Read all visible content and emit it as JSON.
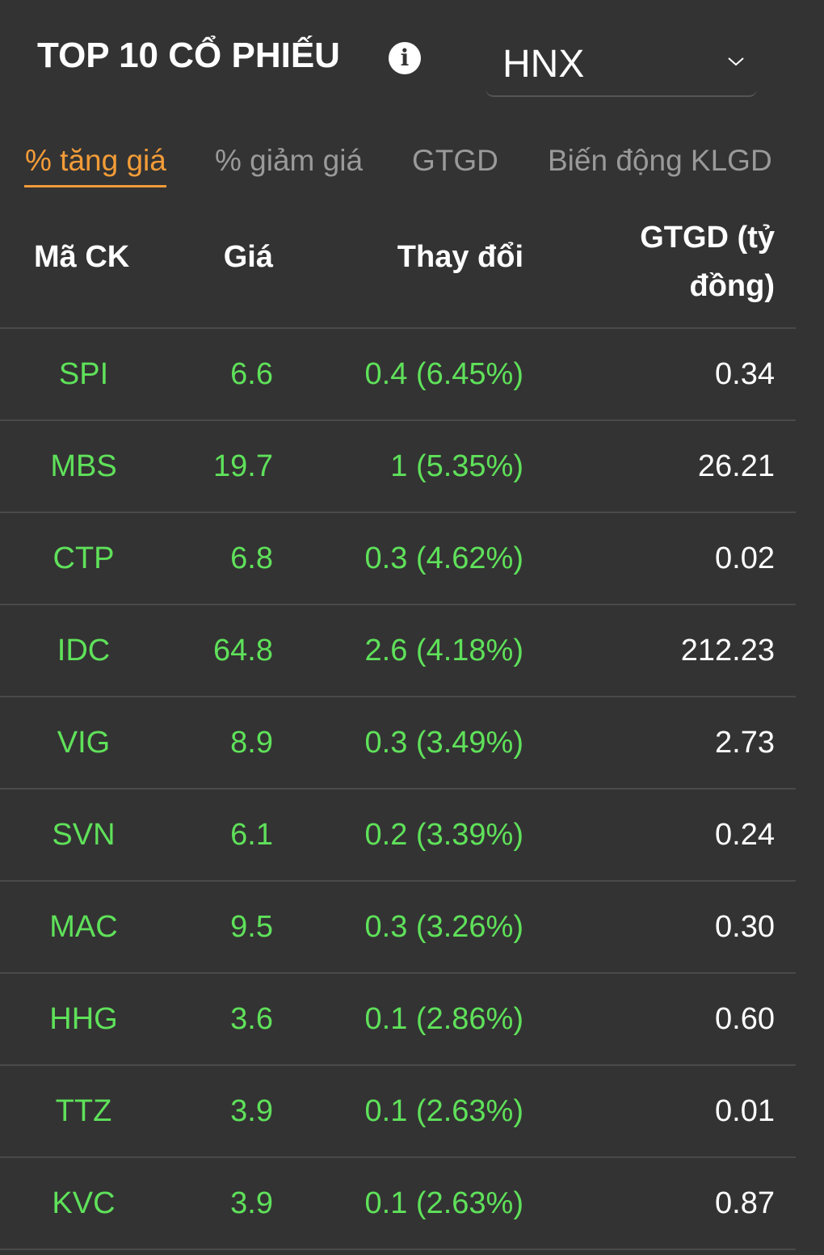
{
  "header": {
    "title": "TOP 10 CỔ PHIẾU",
    "info_icon": "info-icon",
    "exchange": "HNX"
  },
  "tabs": [
    {
      "label": "% tăng giá",
      "active": true
    },
    {
      "label": "% giảm giá",
      "active": false
    },
    {
      "label": "GTGD",
      "active": false
    },
    {
      "label": "Biến động KLGD",
      "active": false
    }
  ],
  "table": {
    "headers": {
      "code": "Mã CK",
      "price": "Giá",
      "change": "Thay đổi",
      "value_line1": "GTGD (tỷ",
      "value_line2": "đồng)"
    },
    "rows": [
      {
        "code": "SPI",
        "price": "6.6",
        "change": "0.4 (6.45%)",
        "value": "0.34"
      },
      {
        "code": "MBS",
        "price": "19.7",
        "change": "1 (5.35%)",
        "value": "26.21"
      },
      {
        "code": "CTP",
        "price": "6.8",
        "change": "0.3 (4.62%)",
        "value": "0.02"
      },
      {
        "code": "IDC",
        "price": "64.8",
        "change": "2.6 (4.18%)",
        "value": "212.23"
      },
      {
        "code": "VIG",
        "price": "8.9",
        "change": "0.3 (3.49%)",
        "value": "2.73"
      },
      {
        "code": "SVN",
        "price": "6.1",
        "change": "0.2 (3.39%)",
        "value": "0.24"
      },
      {
        "code": "MAC",
        "price": "9.5",
        "change": "0.3 (3.26%)",
        "value": "0.30"
      },
      {
        "code": "HHG",
        "price": "3.6",
        "change": "0.1 (2.86%)",
        "value": "0.60"
      },
      {
        "code": "TTZ",
        "price": "3.9",
        "change": "0.1 (2.63%)",
        "value": "0.01"
      },
      {
        "code": "KVC",
        "price": "3.9",
        "change": "0.1 (2.63%)",
        "value": "0.87"
      }
    ]
  },
  "colors": {
    "background": "#333333",
    "accent": "#f39c38",
    "up": "#5fe15a",
    "inactive_tab": "#9a9a9a"
  }
}
